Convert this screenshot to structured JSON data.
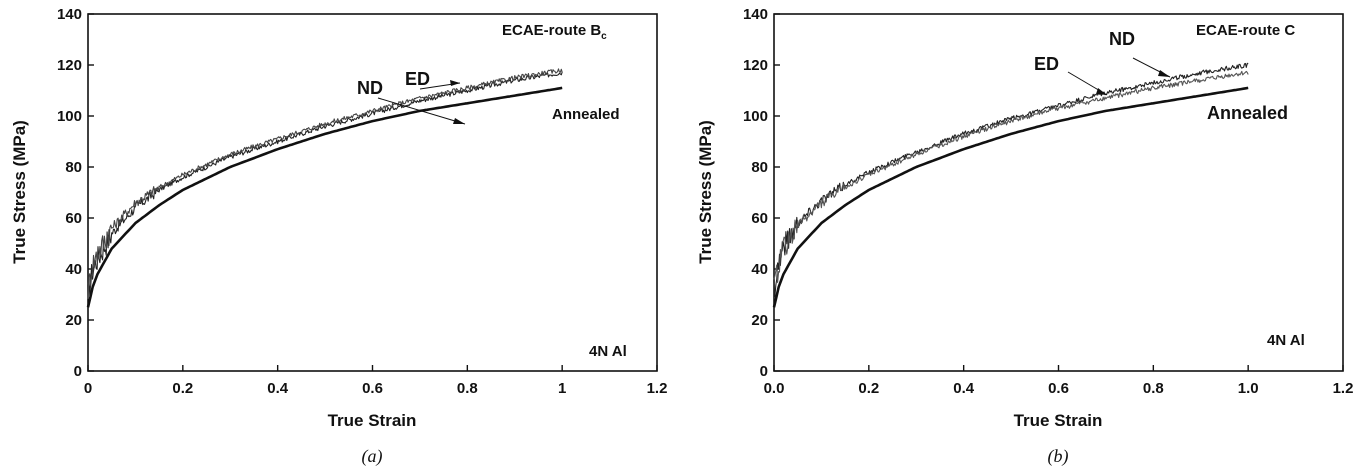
{
  "chart_data": [
    {
      "type": "line",
      "caption": "(a)",
      "xlabel": "True Strain",
      "ylabel": "True Stress (MPa)",
      "xlim": [
        0,
        1.2
      ],
      "ylim": [
        0,
        140
      ],
      "x_ticks": [
        "0",
        "0.2",
        "0.4",
        "0.6",
        "0.8",
        "1",
        "1.2"
      ],
      "y_ticks": [
        "0",
        "20",
        "40",
        "60",
        "80",
        "100",
        "120",
        "140"
      ],
      "grid": false,
      "annotations": {
        "title": "ECAE-route B",
        "title_sub": "c",
        "material": "4N Al",
        "nd": "ND",
        "ed": "ED",
        "annealed": "Annealed"
      },
      "series": [
        {
          "name": "ND",
          "color": "#222222",
          "noisy": true,
          "x": [
            0,
            0.01,
            0.02,
            0.05,
            0.1,
            0.15,
            0.2,
            0.3,
            0.4,
            0.5,
            0.6,
            0.7,
            0.8,
            0.9,
            1.0
          ],
          "y": [
            30,
            40,
            44,
            54,
            64,
            71,
            76,
            84,
            90,
            96,
            101,
            106,
            110,
            114,
            117
          ]
        },
        {
          "name": "ED",
          "color": "#444444",
          "noisy": true,
          "x": [
            0,
            0.01,
            0.02,
            0.05,
            0.1,
            0.15,
            0.2,
            0.3,
            0.4,
            0.5,
            0.6,
            0.7,
            0.8,
            0.9,
            1.0
          ],
          "y": [
            32,
            42,
            46,
            56,
            66,
            72,
            77,
            85,
            91,
            97,
            102,
            107,
            111,
            115,
            118
          ]
        },
        {
          "name": "Annealed",
          "color": "#111111",
          "noisy": false,
          "x": [
            0,
            0.01,
            0.02,
            0.05,
            0.1,
            0.15,
            0.2,
            0.3,
            0.4,
            0.5,
            0.6,
            0.7,
            0.8,
            0.9,
            1.0
          ],
          "y": [
            25,
            33,
            38,
            48,
            58,
            65,
            71,
            80,
            87,
            93,
            98,
            102,
            105,
            108,
            111
          ]
        }
      ]
    },
    {
      "type": "line",
      "caption": "(b)",
      "xlabel": "True Strain",
      "ylabel": "True Stress (MPa)",
      "xlim": [
        0,
        1.2
      ],
      "ylim": [
        0,
        140
      ],
      "x_ticks": [
        "0.0",
        "0.2",
        "0.4",
        "0.6",
        "0.8",
        "1.0",
        "1.2"
      ],
      "y_ticks": [
        "0",
        "20",
        "40",
        "60",
        "80",
        "100",
        "120",
        "140"
      ],
      "grid": false,
      "annotations": {
        "title": "ECAE-route C",
        "title_sub": "",
        "material": "4N Al",
        "nd": "ND",
        "ed": "ED",
        "annealed": "Annealed"
      },
      "series": [
        {
          "name": "ND",
          "color": "#222222",
          "noisy": true,
          "x": [
            0,
            0.01,
            0.02,
            0.05,
            0.1,
            0.15,
            0.2,
            0.3,
            0.4,
            0.5,
            0.6,
            0.7,
            0.8,
            0.9,
            1.0
          ],
          "y": [
            32,
            43,
            49,
            58,
            67,
            73,
            78,
            86,
            93,
            99,
            104,
            109,
            113,
            117,
            120
          ]
        },
        {
          "name": "ED",
          "color": "#555555",
          "noisy": true,
          "x": [
            0,
            0.01,
            0.02,
            0.05,
            0.1,
            0.15,
            0.2,
            0.3,
            0.4,
            0.5,
            0.6,
            0.7,
            0.8,
            0.9,
            1.0
          ],
          "y": [
            31,
            42,
            48,
            57,
            66,
            72,
            77,
            85,
            92,
            98,
            103,
            107,
            111,
            114,
            117
          ]
        },
        {
          "name": "Annealed",
          "color": "#111111",
          "noisy": false,
          "x": [
            0,
            0.01,
            0.02,
            0.05,
            0.1,
            0.15,
            0.2,
            0.3,
            0.4,
            0.5,
            0.6,
            0.7,
            0.8,
            0.9,
            1.0
          ],
          "y": [
            25,
            33,
            38,
            48,
            58,
            65,
            71,
            80,
            87,
            93,
            98,
            102,
            105,
            108,
            111
          ]
        }
      ]
    }
  ]
}
